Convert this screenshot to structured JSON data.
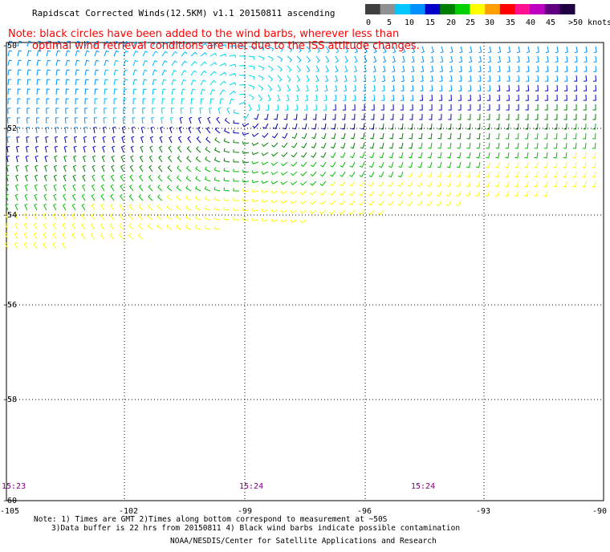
{
  "title": "Rapidscat Corrected Winds(12.5KM) v1.1 20150811 ascending",
  "note_line1": "Note: black circles have been added to the wind barbs, wherever less than",
  "note_line2": "optimal wind retrieval conditions are met due to the ISS attitude changes.",
  "color_scale": {
    "unit": "knots",
    "labels": [
      "0",
      "5",
      "10",
      "15",
      "20",
      "25",
      "30",
      "35",
      "40",
      "45",
      ">50 knots"
    ],
    "colors": [
      "#404040",
      "#909090",
      "#00c8ff",
      "#0090ff",
      "#0000c8",
      "#008000",
      "#00d000",
      "#ffff00",
      "#ffa000",
      "#ff0000",
      "#ff1090",
      "#c000c0",
      "#600080",
      "#200040"
    ]
  },
  "lat_labels": [
    "-50",
    "-52",
    "-54",
    "-56",
    "-58",
    "-60"
  ],
  "lon_labels": [
    "-105",
    "-102",
    "-99",
    "-96",
    "-93",
    "-90"
  ],
  "time_labels": [
    "15:23",
    "15:24",
    "15:24"
  ],
  "footnote_line1": "Note: 1) Times are GMT 2)Times along bottom correspond to measurement at ~50S",
  "footnote_line2": "3)Data buffer is 22 hrs from 20150811 4) Black wind barbs indicate possible contamination",
  "credit": "NOAA/NESDIS/Center for Satellite Applications and Research"
}
